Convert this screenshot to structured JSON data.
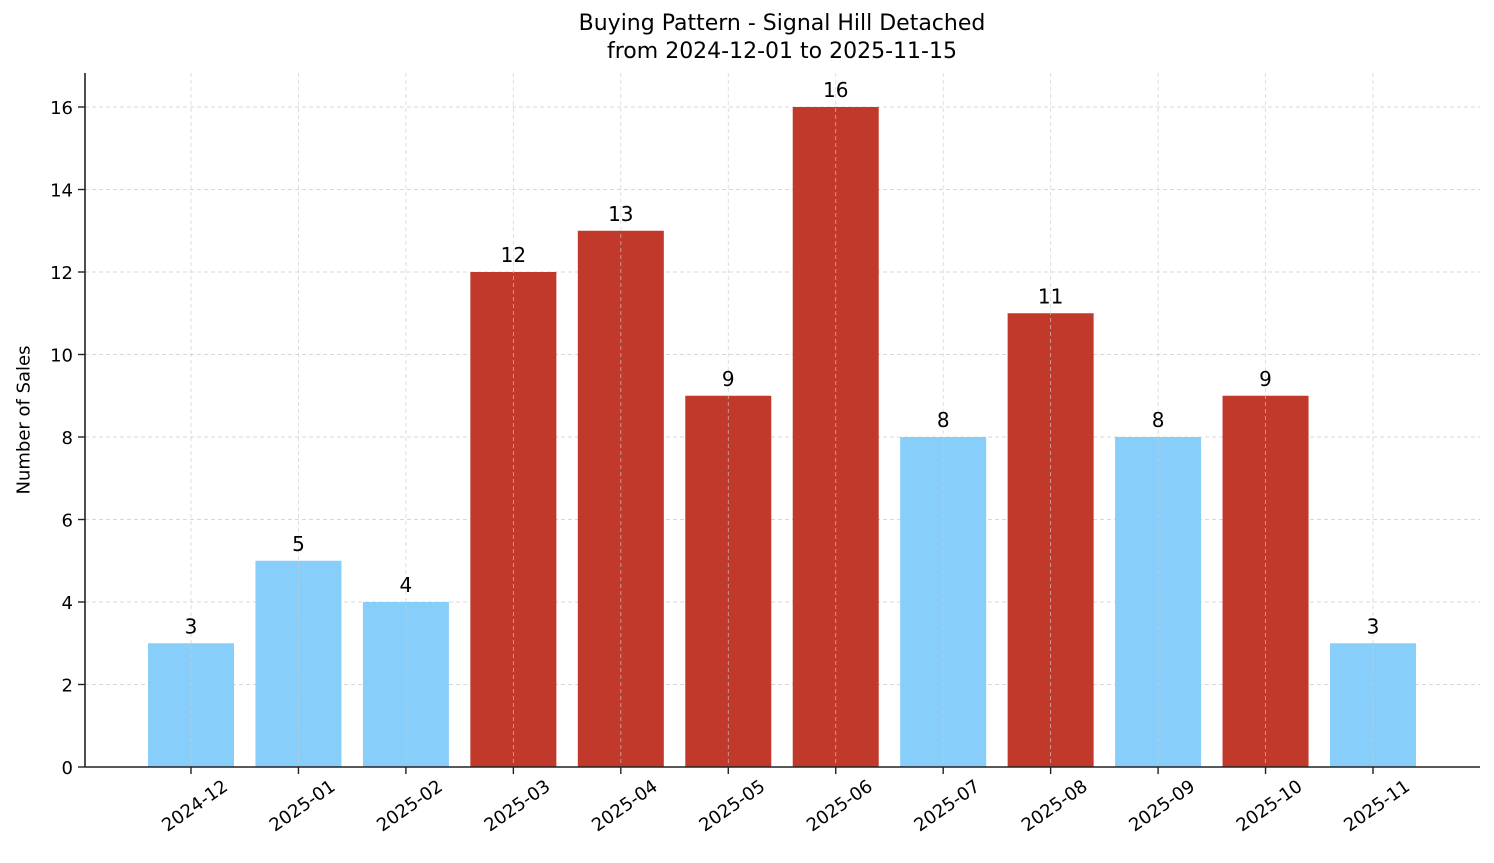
{
  "chart_data": {
    "type": "bar",
    "title": "Buying Pattern - Signal Hill Detached",
    "subtitle": "from 2024-12-01 to 2025-11-15",
    "xlabel": "",
    "ylabel": "Number of Sales",
    "categories": [
      "2024-12",
      "2025-01",
      "2025-02",
      "2025-03",
      "2025-04",
      "2025-05",
      "2025-06",
      "2025-07",
      "2025-08",
      "2025-09",
      "2025-10",
      "2025-11"
    ],
    "values": [
      3,
      5,
      4,
      12,
      13,
      9,
      16,
      8,
      11,
      8,
      9,
      3
    ],
    "bar_colors": [
      "#87CEFA",
      "#87CEFA",
      "#87CEFA",
      "#C0392B",
      "#C0392B",
      "#C0392B",
      "#C0392B",
      "#87CEFA",
      "#C0392B",
      "#87CEFA",
      "#C0392B",
      "#87CEFA"
    ],
    "ylim": [
      0,
      16.8
    ],
    "yticks": [
      0,
      2,
      4,
      6,
      8,
      10,
      12,
      14,
      16
    ],
    "grid": true,
    "legend": null,
    "data_labels": true
  },
  "colors": {
    "low": "#87CEFA",
    "high": "#C0392B",
    "grid": "#cccccc",
    "axis": "#222222"
  }
}
